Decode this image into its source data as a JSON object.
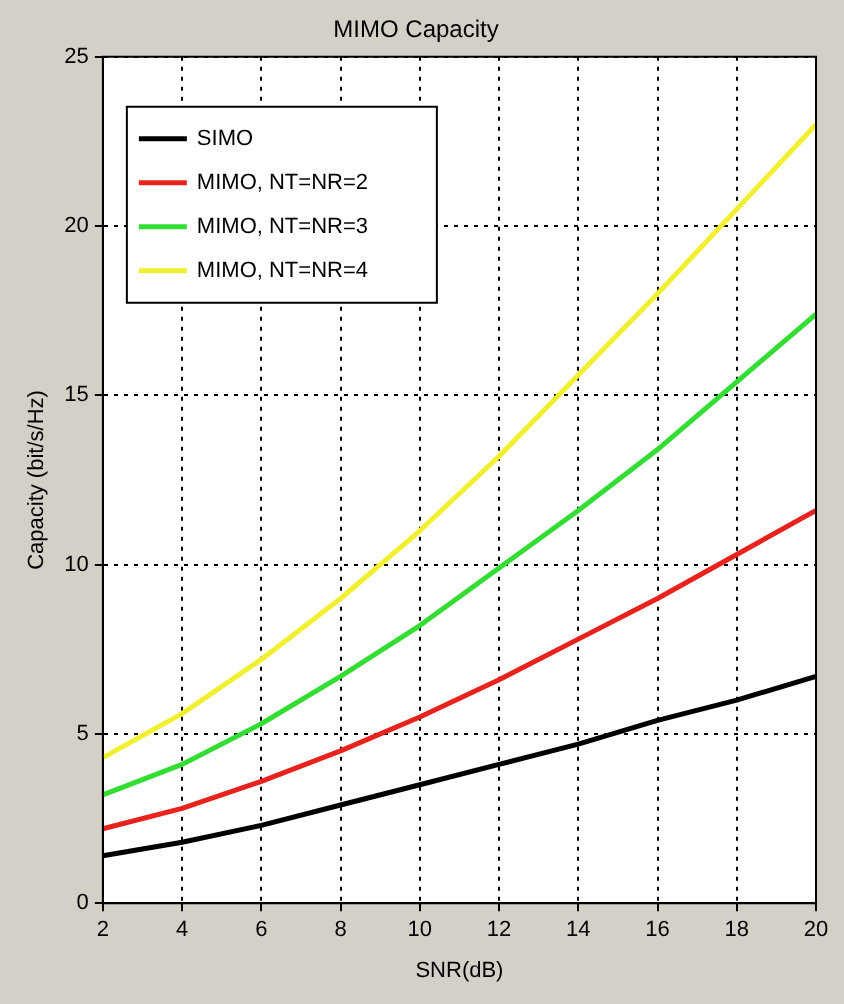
{
  "chart_data": {
    "type": "line",
    "title": "MIMO Capacity",
    "xlabel": "SNR(dB)",
    "ylabel": "Capacity (bit/s/Hz)",
    "x": [
      2,
      4,
      6,
      8,
      10,
      12,
      14,
      16,
      18,
      20
    ],
    "series": [
      {
        "name": "SIMO",
        "color": "#000000",
        "values": [
          1.4,
          1.8,
          2.3,
          2.9,
          3.5,
          4.1,
          4.7,
          5.4,
          6.0,
          6.7
        ]
      },
      {
        "name": "MIMO, NT=NR=2",
        "color": "#e8231e",
        "values": [
          2.2,
          2.8,
          3.6,
          4.5,
          5.5,
          6.6,
          7.8,
          9.0,
          10.3,
          11.6
        ]
      },
      {
        "name": "MIMO, NT=NR=3",
        "color": "#33dd33",
        "values": [
          3.2,
          4.1,
          5.3,
          6.7,
          8.2,
          9.9,
          11.6,
          13.4,
          15.4,
          17.4
        ]
      },
      {
        "name": "MIMO, NT=NR=4",
        "color": "#f0f030",
        "values": [
          4.3,
          5.6,
          7.2,
          9.0,
          11.0,
          13.2,
          15.6,
          18.0,
          20.5,
          23.0
        ]
      }
    ],
    "xlim": [
      2,
      20
    ],
    "xticks": [
      2,
      4,
      6,
      8,
      10,
      12,
      14,
      16,
      18,
      20
    ],
    "ylim": [
      0,
      25
    ],
    "yticks": [
      0,
      5,
      10,
      15,
      20,
      25
    ],
    "grid": true,
    "legend": "top left",
    "marker": "none",
    "line_style": "solid"
  }
}
